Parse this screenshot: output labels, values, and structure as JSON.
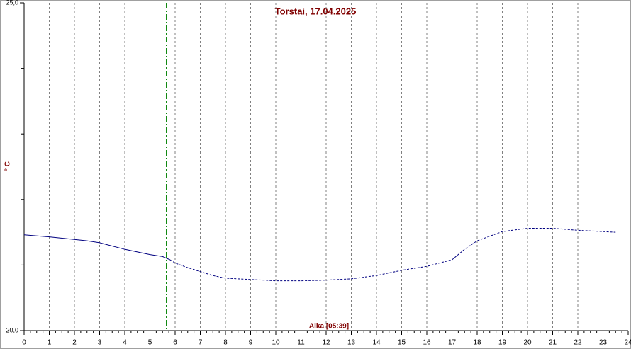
{
  "chart_data": {
    "type": "line",
    "title": "Torstai, 17.04.2025",
    "ylabel": "° C",
    "xlabel": "Aika [05:39]",
    "xlim": [
      0,
      24
    ],
    "xticks": [
      0,
      1,
      2,
      3,
      4,
      5,
      6,
      7,
      8,
      9,
      10,
      11,
      12,
      13,
      14,
      15,
      16,
      17,
      18,
      19,
      20,
      21,
      22,
      23,
      24
    ],
    "x_minor_step": 0.25,
    "ylim": [
      20,
      25
    ],
    "yticks": [
      {
        "value": 20,
        "label": "20,0"
      },
      {
        "value": 25,
        "label": "25,0"
      }
    ],
    "y_minor_ticks": [
      21,
      22,
      23,
      24
    ],
    "grid": true,
    "marker_x": 5.65,
    "marker_color": "#008000",
    "series": [
      {
        "color": "#000080",
        "style": "solid",
        "x": [
          0,
          1,
          2.5,
          3,
          4,
          5,
          5.5,
          5.8
        ],
        "values": [
          21.46,
          21.43,
          21.37,
          21.34,
          21.24,
          21.16,
          21.13,
          21.08
        ]
      },
      {
        "color": "#000080",
        "style": "dashed",
        "x": [
          5.8,
          6,
          6.5,
          7,
          7.5,
          8,
          9,
          10,
          11,
          12,
          13,
          14,
          15,
          16,
          17,
          17.5,
          18,
          18.5,
          19,
          20,
          21,
          22,
          23,
          23.5
        ],
        "values": [
          21.08,
          21.03,
          20.96,
          20.9,
          20.84,
          20.8,
          20.78,
          20.76,
          20.76,
          20.77,
          20.79,
          20.84,
          20.92,
          20.98,
          21.08,
          21.24,
          21.37,
          21.44,
          21.51,
          21.56,
          21.56,
          21.53,
          21.51,
          21.5
        ]
      }
    ]
  }
}
